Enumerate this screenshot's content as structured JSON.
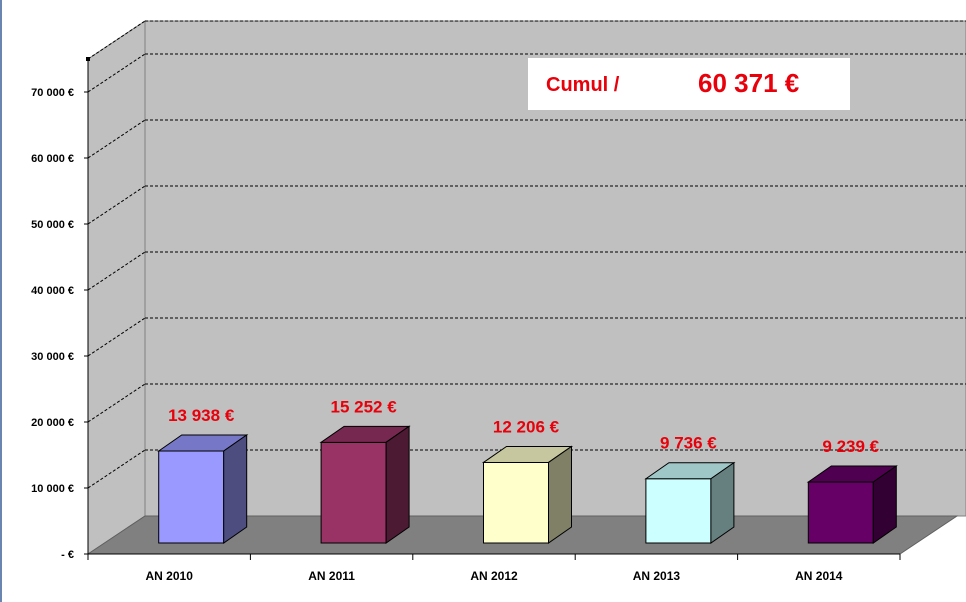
{
  "colors": {
    "back_wall": "#c0c0c0",
    "side_wall": "#c0c0c0",
    "floor": "#808080",
    "data_label": "#e8000b",
    "axis_text": "#000000"
  },
  "summary": {
    "label": "Cumul /",
    "value": "60 371 €"
  },
  "chart_data": {
    "type": "bar",
    "three_d": true,
    "categories": [
      "AN 2010",
      "AN 2011",
      "AN 2012",
      "AN 2013",
      "AN 2014"
    ],
    "values": [
      13938,
      15252,
      12206,
      9736,
      9239
    ],
    "value_labels": [
      "13 938 €",
      "15 252 €",
      "12 206 €",
      "9 736 €",
      "9 239 €"
    ],
    "bar_colors": [
      "#9999ff",
      "#993366",
      "#ffffcc",
      "#ccffff",
      "#660066"
    ],
    "y_ticks": [
      0,
      10000,
      20000,
      30000,
      40000,
      50000,
      60000,
      70000
    ],
    "y_tick_labels": [
      "-   €",
      "10 000 €",
      "20 000 €",
      "30 000 €",
      "40 000 €",
      "50 000 €",
      "60 000 €",
      "70 000 €"
    ],
    "ylim": [
      0,
      75000
    ],
    "grid": true,
    "title": "",
    "xlabel": "",
    "ylabel": "",
    "legend": "none"
  }
}
